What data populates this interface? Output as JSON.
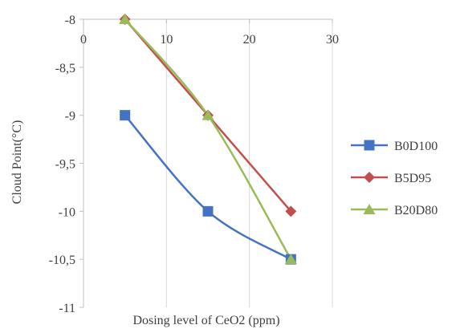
{
  "chart_data": {
    "type": "line",
    "title": "",
    "xlabel": "Dosing level of CeO2 (ppm)",
    "ylabel": "Cloud Point(°C)",
    "xlim": [
      0,
      30
    ],
    "ylim": [
      -11,
      -8
    ],
    "x_ticks": [
      0,
      10,
      20,
      30
    ],
    "x_tick_labels": [
      "0",
      "10",
      "20",
      "30"
    ],
    "y_ticks": [
      -8,
      -8.5,
      -9,
      -9.5,
      -10,
      -10.5,
      -11
    ],
    "y_tick_labels": [
      "-8",
      "-8,5",
      "-9",
      "-9,5",
      "-10",
      "-10,5",
      "-11"
    ],
    "x_axis_position": "top",
    "grid": "vertical",
    "legend_position": "right",
    "smooth": true,
    "series": [
      {
        "name": "B0D100",
        "marker": "square",
        "color": "#4472C4",
        "x": [
          5,
          15,
          25
        ],
        "y": [
          -9,
          -10,
          -10.5
        ]
      },
      {
        "name": "B5D95",
        "marker": "diamond",
        "color": "#C0504D",
        "x": [
          5,
          15,
          25
        ],
        "y": [
          -8,
          -9,
          -10
        ]
      },
      {
        "name": "B20D80",
        "marker": "triangle",
        "color": "#9BBB59",
        "x": [
          5,
          15,
          25
        ],
        "y": [
          -8,
          -9,
          -10.5
        ]
      }
    ]
  }
}
